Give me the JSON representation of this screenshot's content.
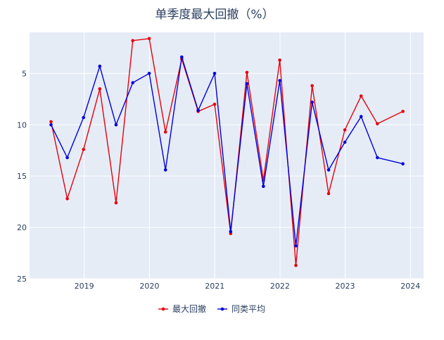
{
  "chart_data": {
    "type": "line",
    "title": "单季度最大回撤（%）",
    "xlabel": "",
    "ylabel": "",
    "x": [
      "2018-06-29",
      "2018-09-28",
      "2018-12-28",
      "2019-03-29",
      "2019-06-28",
      "2019-09-30",
      "2019-12-31",
      "2020-03-31",
      "2020-06-30",
      "2020-09-30",
      "2020-12-31",
      "2021-03-31",
      "2021-06-30",
      "2021-09-30",
      "2021-12-31",
      "2022-03-31",
      "2022-06-30",
      "2022-09-30",
      "2022-12-30",
      "2023-03-31",
      "2023-06-30",
      "2023-11-20"
    ],
    "x_range": [
      "2018-03-01",
      "2024-03-15"
    ],
    "x_ticks": [
      "2019",
      "2020",
      "2021",
      "2022",
      "2023",
      "2024"
    ],
    "y_range": [
      1,
      25
    ],
    "y_reversed": true,
    "y_ticks": [
      5,
      10,
      15,
      20,
      25
    ],
    "grid": true,
    "legend_position": "bottom-center",
    "series": [
      {
        "name": "最大回撤",
        "color": "#e8000b",
        "values": [
          9.7,
          17.2,
          12.4,
          6.5,
          17.6,
          1.8,
          1.6,
          10.7,
          3.6,
          8.7,
          8.0,
          20.6,
          4.9,
          15.4,
          3.7,
          23.7,
          6.2,
          16.7,
          10.5,
          7.2,
          9.9,
          8.7
        ]
      },
      {
        "name": "同类平均",
        "color": "#0000dd",
        "values": [
          10.0,
          13.2,
          9.3,
          4.3,
          10.0,
          5.9,
          5.0,
          14.4,
          3.4,
          8.6,
          5.0,
          20.4,
          6.0,
          16.0,
          5.7,
          21.8,
          7.8,
          14.4,
          11.7,
          9.2,
          13.2,
          13.8
        ]
      }
    ]
  }
}
